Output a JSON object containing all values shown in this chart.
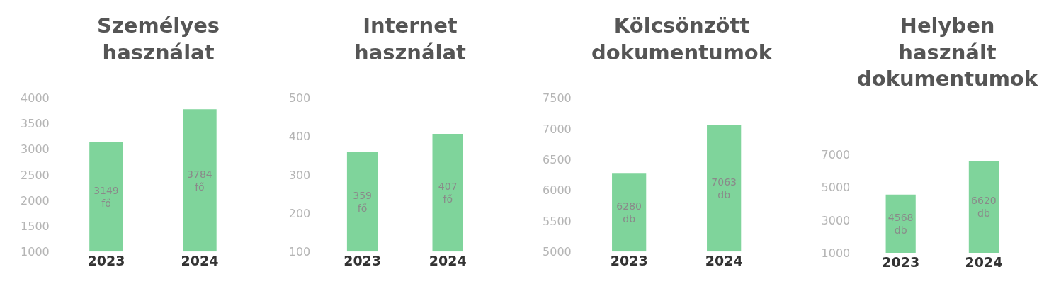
{
  "chart_data": [
    {
      "type": "bar",
      "title": "Személyes\nhasználat",
      "categories": [
        "2023",
        "2024"
      ],
      "values": [
        3149,
        3784
      ],
      "value_labels": [
        "3149\nfő",
        "3784\nfő"
      ],
      "color": "#7fd49b",
      "ylim": [
        1000,
        4000
      ],
      "yticks": [
        1000,
        1500,
        2000,
        2500,
        3000,
        3500,
        4000
      ]
    },
    {
      "type": "bar",
      "title": "Internet\nhasználat",
      "categories": [
        "2023",
        "2024"
      ],
      "values": [
        359,
        407
      ],
      "value_labels": [
        "359\nfő",
        "407\nfő"
      ],
      "color": "#7fd49b",
      "ylim": [
        100,
        500
      ],
      "yticks": [
        100,
        200,
        300,
        400,
        500
      ]
    },
    {
      "type": "bar",
      "title": "Kölcsönzött\ndokumentumok",
      "categories": [
        "2023",
        "2024"
      ],
      "values": [
        6280,
        7063
      ],
      "value_labels": [
        "6280\ndb",
        "7063\ndb"
      ],
      "color": "#7fd49b",
      "ylim": [
        5000,
        7500
      ],
      "yticks": [
        5000,
        5500,
        6000,
        6500,
        7000,
        7500
      ]
    },
    {
      "type": "bar",
      "title": "Helyben\nhasznált\ndokumentumok",
      "categories": [
        "2023",
        "2024"
      ],
      "values": [
        4568,
        6620
      ],
      "value_labels": [
        "4568\ndb",
        "6620\ndb"
      ],
      "color": "#7fd49b",
      "ylim": [
        1000,
        7000
      ],
      "yticks": [
        1000,
        3000,
        5000,
        7000
      ]
    }
  ]
}
